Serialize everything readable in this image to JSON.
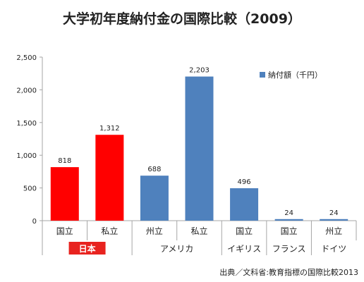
{
  "chart_data": {
    "type": "bar",
    "title": "大学初年度納付金の国際比較（2009）",
    "categories": [
      "国立",
      "私立",
      "州立",
      "私立",
      "国立",
      "国立",
      "州立"
    ],
    "values": [
      818,
      1312,
      688,
      2203,
      496,
      24,
      24
    ],
    "value_labels": [
      "818",
      "1,312",
      "688",
      "2,203",
      "496",
      "24",
      "24"
    ],
    "groups": [
      {
        "label": "日本",
        "count": 2,
        "highlight": true
      },
      {
        "label": "アメリカ",
        "count": 2,
        "highlight": false
      },
      {
        "label": "イギリス",
        "count": 1,
        "highlight": false
      },
      {
        "label": "フランス",
        "count": 1,
        "highlight": false
      },
      {
        "label": "ドイツ",
        "count": 1,
        "highlight": false
      }
    ],
    "bar_colors": [
      "#ff0000",
      "#ff0000",
      "#4f81bd",
      "#4f81bd",
      "#4f81bd",
      "#4f81bd",
      "#4f81bd"
    ],
    "series": [
      {
        "name": "納付額（千円）",
        "values": [
          818,
          1312,
          688,
          2203,
          496,
          24,
          24
        ]
      }
    ],
    "y_ticks": [
      0,
      500,
      1000,
      1500,
      2000,
      2500
    ],
    "y_tick_labels": [
      "0",
      "500",
      "1,000",
      "1,500",
      "2,000",
      "2,500"
    ],
    "ylim": [
      0,
      2500
    ],
    "grid": false,
    "legend": "top-right",
    "source": "出典／文科省:教育指標の国際比較2013",
    "colors": {
      "japan": "#ff0000",
      "others": "#4f81bd",
      "japan_badge": "#e8231f",
      "axis": "#a6a6a6"
    }
  }
}
